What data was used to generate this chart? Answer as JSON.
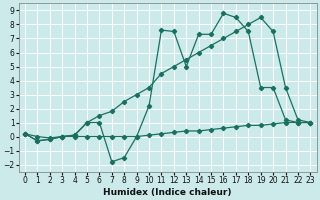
{
  "xlabel": "Humidex (Indice chaleur)",
  "ylabel": "",
  "background_color": "#cceaea",
  "grid_color": "#b0d8d8",
  "line_color": "#1a7060",
  "xlim": [
    -0.5,
    23.5
  ],
  "ylim": [
    -2.5,
    9.5
  ],
  "xticks": [
    0,
    1,
    2,
    3,
    4,
    5,
    6,
    7,
    8,
    9,
    10,
    11,
    12,
    13,
    14,
    15,
    16,
    17,
    18,
    19,
    20,
    21,
    22,
    23
  ],
  "yticks": [
    -2,
    -1,
    0,
    1,
    2,
    3,
    4,
    5,
    6,
    7,
    8,
    9
  ],
  "line_flat_x": [
    0,
    1,
    2,
    3,
    4,
    5,
    6,
    7,
    8,
    9,
    10,
    11,
    12,
    13,
    14,
    15,
    16,
    17,
    18,
    19,
    20,
    21,
    22,
    23
  ],
  "line_flat_y": [
    0.2,
    0.0,
    -0.1,
    0.0,
    0.0,
    0.0,
    0.0,
    0.0,
    0.0,
    0.0,
    0.1,
    0.2,
    0.3,
    0.4,
    0.4,
    0.5,
    0.6,
    0.7,
    0.8,
    0.8,
    0.9,
    1.0,
    1.0,
    1.0
  ],
  "line_zigzag_x": [
    0,
    1,
    2,
    3,
    4,
    5,
    6,
    7,
    8,
    9,
    10,
    11,
    12,
    13,
    14,
    15,
    16,
    17,
    18,
    19,
    20,
    21,
    22,
    23
  ],
  "line_zigzag_y": [
    0.2,
    -0.3,
    -0.2,
    0.0,
    0.1,
    1.0,
    1.0,
    -1.8,
    -1.5,
    0.0,
    2.2,
    7.6,
    7.5,
    5.0,
    7.3,
    7.3,
    8.8,
    8.5,
    7.5,
    3.5,
    3.5,
    1.2,
    1.0,
    1.0
  ],
  "line_diag_x": [
    0,
    1,
    2,
    3,
    4,
    5,
    6,
    7,
    8,
    9,
    10,
    11,
    12,
    13,
    14,
    15,
    16,
    17,
    18,
    19,
    20,
    21,
    22,
    23
  ],
  "line_diag_y": [
    0.2,
    -0.3,
    -0.2,
    0.0,
    0.1,
    1.0,
    1.5,
    1.8,
    2.5,
    3.0,
    3.5,
    4.5,
    5.0,
    5.5,
    6.0,
    6.5,
    7.0,
    7.5,
    8.0,
    8.5,
    7.5,
    3.5,
    1.2,
    1.0
  ]
}
